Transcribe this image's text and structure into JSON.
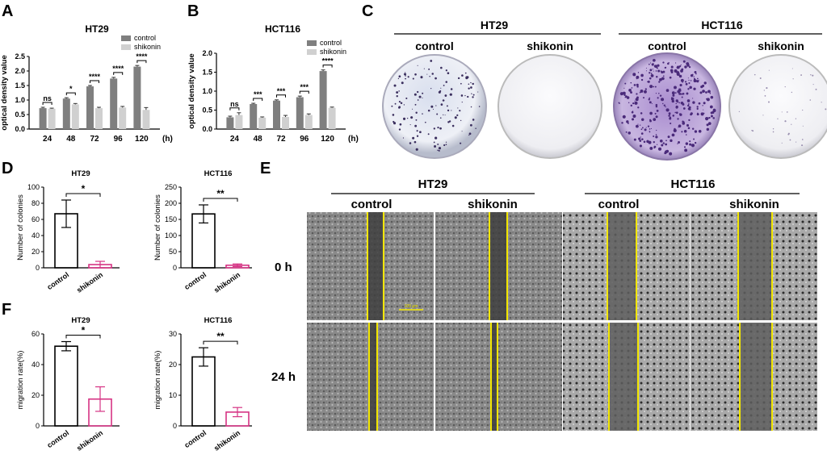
{
  "panels": {
    "A": "A",
    "B": "B",
    "C": "C",
    "D": "D",
    "E": "E",
    "F": "F"
  },
  "colors": {
    "control_bar": "#7f7f7f",
    "shikonin_bar": "#d0d0d0",
    "shikonin_pink": "#d63384",
    "plate_purple": "#6a4a9c",
    "scratch_line": "#f2e600"
  },
  "chart_data": [
    {
      "id": "A",
      "type": "bar",
      "title": "HT29",
      "ylabel": "optical density value",
      "x_unit": "(h)",
      "categories": [
        "24",
        "48",
        "72",
        "96",
        "120"
      ],
      "ylim": [
        0,
        2.5
      ],
      "yticks": [
        "0.0",
        "0.5",
        "1.0",
        "1.5",
        "2.0",
        "2.5"
      ],
      "legend_position": "top-right",
      "series": [
        {
          "name": "control",
          "values": [
            0.72,
            1.05,
            1.47,
            1.74,
            2.15
          ],
          "errors": [
            0.03,
            0.03,
            0.03,
            0.04,
            0.04
          ]
        },
        {
          "name": "shikonin",
          "values": [
            0.7,
            0.85,
            0.72,
            0.74,
            0.66
          ],
          "errors": [
            0.02,
            0.03,
            0.03,
            0.04,
            0.08
          ]
        }
      ],
      "significance": [
        "ns",
        "*",
        "****",
        "****",
        "****"
      ]
    },
    {
      "id": "B",
      "type": "bar",
      "title": "HCT116",
      "ylabel": "optical density value",
      "x_unit": "(h)",
      "categories": [
        "24",
        "48",
        "72",
        "96",
        "120"
      ],
      "ylim": [
        0,
        2.0
      ],
      "yticks": [
        "0.0",
        "0.5",
        "1.0",
        "1.5",
        "2.0"
      ],
      "legend_position": "top-right",
      "series": [
        {
          "name": "control",
          "values": [
            0.31,
            0.66,
            0.75,
            0.84,
            1.53
          ],
          "errors": [
            0.03,
            0.02,
            0.02,
            0.03,
            0.03
          ]
        },
        {
          "name": "shikonin",
          "values": [
            0.37,
            0.3,
            0.32,
            0.37,
            0.56
          ],
          "errors": [
            0.06,
            0.02,
            0.04,
            0.03,
            0.02
          ]
        }
      ],
      "significance": [
        "ns",
        "***",
        "***",
        "***",
        "****"
      ]
    },
    {
      "id": "D1",
      "type": "bar",
      "title": "HT29",
      "ylabel": "Number of colonies",
      "categories": [
        "control",
        "shikonin"
      ],
      "values": [
        67,
        4
      ],
      "errors": [
        17,
        4
      ],
      "ylim": [
        0,
        100
      ],
      "yticks": [
        "0",
        "20",
        "40",
        "60",
        "80",
        "100"
      ],
      "significance": "*"
    },
    {
      "id": "D2",
      "type": "bar",
      "title": "HCT116",
      "ylabel": "Number of colonies",
      "categories": [
        "control",
        "shikonin"
      ],
      "values": [
        167,
        8
      ],
      "errors": [
        28,
        4
      ],
      "ylim": [
        0,
        250
      ],
      "yticks": [
        "0",
        "50",
        "100",
        "150",
        "200",
        "250"
      ],
      "significance": "**"
    },
    {
      "id": "F1",
      "type": "bar",
      "title": "HT29",
      "ylabel": "migration rate(%)",
      "categories": [
        "control",
        "shikonin"
      ],
      "values": [
        52,
        17.5
      ],
      "errors": [
        3,
        8
      ],
      "ylim": [
        0,
        60
      ],
      "yticks": [
        "0",
        "20",
        "40",
        "60"
      ],
      "significance": "*"
    },
    {
      "id": "F2",
      "type": "bar",
      "title": "HCT116",
      "ylabel": "migration rate(%)",
      "categories": [
        "control",
        "shikonin"
      ],
      "values": [
        22.5,
        4.5
      ],
      "errors": [
        3,
        1.5
      ],
      "ylim": [
        0,
        30
      ],
      "yticks": [
        "0",
        "10",
        "20",
        "30"
      ],
      "significance": "**"
    }
  ],
  "panel_c": {
    "groups": [
      "HT29",
      "HCT116"
    ],
    "conditions": [
      "control",
      "shikonin",
      "control",
      "shikonin"
    ]
  },
  "panel_e": {
    "groups": [
      "HT29",
      "HCT116"
    ],
    "conditions": [
      "control",
      "shikonin",
      "control",
      "shikonin"
    ],
    "rows": [
      "0 h",
      "24 h"
    ],
    "scale_bar": "100 μm"
  }
}
